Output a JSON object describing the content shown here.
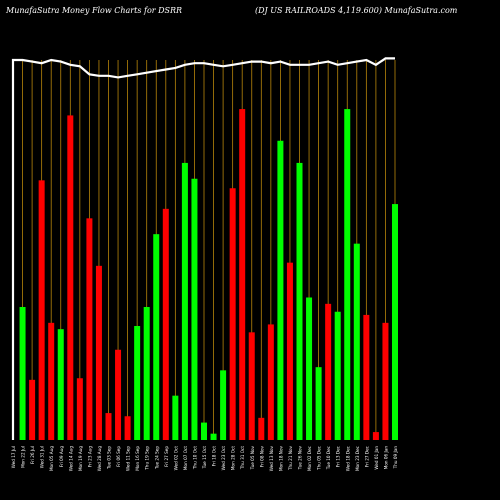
{
  "header": {
    "left": "MunafaSutra  Money Flow  Charts for DSRR",
    "right": "(DJ US RAILROADS 4,119.600) MunafaSutra.com"
  },
  "colors": {
    "background": "#000000",
    "up": "#00ff00",
    "down": "#ff0000",
    "grid": "#b8860b",
    "line": "#ffffff",
    "label": "#ffffff"
  },
  "chart_data": {
    "type": "bar",
    "title": "MunafaSutra Money Flow Charts for DSRR",
    "subtitle": "(DJ US RAILROADS 4,119.600) MunafaSutra.com",
    "categories": [
      "Wed 17 Jul",
      "Mon 22 Jul",
      "Fri 26 Jul",
      "Wed 31 Jul",
      "Mon 05 Aug",
      "Fri 09 Aug",
      "Wed 14 Aug",
      "Mon 19 Aug",
      "Fri 23 Aug",
      "Wed 28 Aug",
      "Tue 03 Sep",
      "Fri 06 Sep",
      "Wed 11 Sep",
      "Mon 16 Sep",
      "Thu 19 Sep",
      "Tue 24 Sep",
      "Fri 27 Sep",
      "Wed 02 Oct",
      "Mon 07 Oct",
      "Thu 10 Oct",
      "Tue 15 Oct",
      "Fri 18 Oct",
      "Wed 23 Oct",
      "Mon 28 Oct",
      "Thu 31 Oct",
      "Tue 05 Nov",
      "Fri 08 Nov",
      "Wed 13 Nov",
      "Mon 18 Nov",
      "Thu 21 Nov",
      "Tue 26 Nov",
      "Mon 02 Dec",
      "Thu 05 Dec",
      "Tue 10 Dec",
      "Fri 13 Dec",
      "Wed 18 Dec",
      "Mon 23 Dec",
      "Fri 27 Dec",
      "Wed 01 Jan",
      "Mon 06 Jan",
      "Thu 09 Jan"
    ],
    "values": [
      0,
      84,
      38,
      164,
      74,
      70,
      205,
      39,
      140,
      110,
      17,
      57,
      15,
      72,
      84,
      130,
      146,
      28,
      175,
      165,
      11,
      4,
      44,
      159,
      209,
      68,
      14,
      73,
      189,
      112,
      175,
      90,
      46,
      86,
      81,
      209,
      124,
      79,
      5,
      74,
      149
    ],
    "directions": [
      "n",
      "up",
      "down",
      "down",
      "down",
      "up",
      "down",
      "down",
      "down",
      "down",
      "down",
      "down",
      "down",
      "up",
      "up",
      "up",
      "down",
      "up",
      "up",
      "up",
      "up",
      "up",
      "up",
      "down",
      "down",
      "down",
      "down",
      "down",
      "up",
      "down",
      "up",
      "up",
      "up",
      "down",
      "up",
      "up",
      "up",
      "down",
      "down",
      "down",
      "up"
    ],
    "line": [
      240,
      240,
      239,
      238,
      240,
      239,
      237,
      236,
      231,
      230,
      230,
      229,
      230,
      231,
      232,
      233,
      234,
      235,
      237,
      238,
      238,
      237,
      236,
      237,
      238,
      239,
      239,
      238,
      239,
      237,
      237,
      237,
      238,
      239,
      237,
      238,
      239,
      240,
      237,
      241,
      241
    ],
    "xlabel": "",
    "ylabel": "",
    "grid": true,
    "legend": "none"
  }
}
